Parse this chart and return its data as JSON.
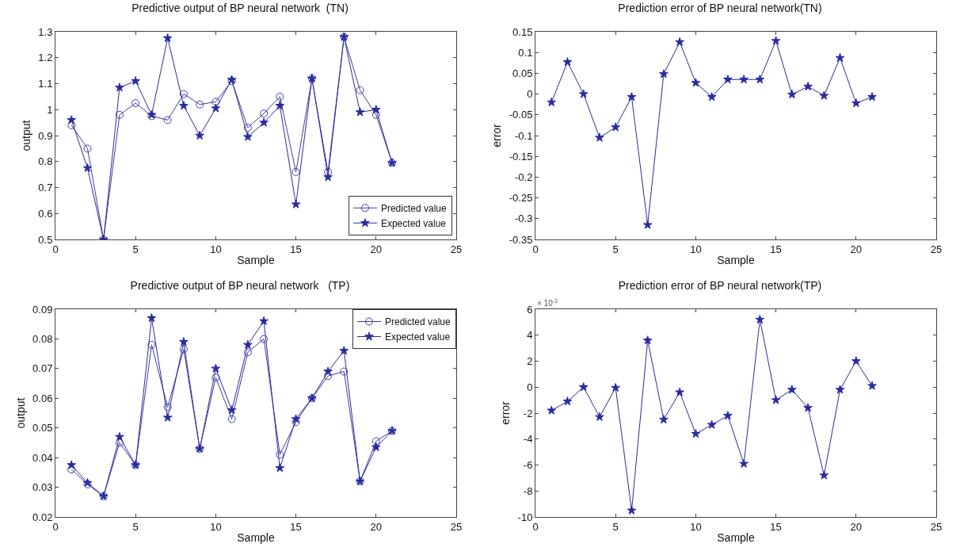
{
  "chart_data": [
    {
      "type": "line",
      "title": "Predictive output of BP neural network  (TN)",
      "xlabel": "Sample",
      "ylabel": "output",
      "x": [
        1,
        2,
        3,
        4,
        5,
        6,
        7,
        8,
        9,
        10,
        11,
        12,
        13,
        14,
        15,
        16,
        17,
        18,
        19,
        20,
        21
      ],
      "xlim": [
        0,
        25
      ],
      "xticks": [
        0,
        5,
        10,
        15,
        20,
        25
      ],
      "ylim": [
        0.5,
        1.3
      ],
      "yticks": [
        0.5,
        0.6,
        0.7,
        0.8,
        0.9,
        1,
        1.1,
        1.2,
        1.3
      ],
      "grid": false,
      "legend": "bottom right",
      "line_style": "solid",
      "series": [
        {
          "name": "Predicted value",
          "color": "#3c3ca8",
          "marker": "circle",
          "values": [
            0.94,
            0.85,
            0.5,
            0.98,
            1.025,
            0.975,
            0.96,
            1.06,
            1.02,
            1.03,
            1.11,
            0.93,
            0.985,
            1.05,
            0.76,
            1.12,
            0.76,
            1.28,
            1.075,
            0.98,
            0.795
          ]
        },
        {
          "name": "Expected value",
          "color": "#2a2aa0",
          "marker": "star",
          "values": [
            0.96,
            0.775,
            0.5,
            1.085,
            1.11,
            0.98,
            1.275,
            1.015,
            0.9,
            1.005,
            1.115,
            0.895,
            0.95,
            1.015,
            0.635,
            1.12,
            0.74,
            1.28,
            0.99,
            1.0,
            0.795
          ]
        }
      ]
    },
    {
      "type": "line",
      "title": "Prediction error of BP neural network(TN)",
      "xlabel": "Sample",
      "ylabel": "error",
      "x": [
        1,
        2,
        3,
        4,
        5,
        6,
        7,
        8,
        9,
        10,
        11,
        12,
        13,
        14,
        15,
        16,
        17,
        18,
        19,
        20,
        21
      ],
      "xlim": [
        0,
        25
      ],
      "xticks": [
        0,
        5,
        10,
        15,
        20,
        25
      ],
      "ylim": [
        -0.35,
        0.15
      ],
      "yticks": [
        -0.35,
        -0.3,
        -0.25,
        -0.2,
        -0.15,
        -0.1,
        -0.05,
        0,
        0.05,
        0.1,
        0.15
      ],
      "grid": false,
      "legend": false,
      "line_style": "solid",
      "marker": "star",
      "series": [
        {
          "color": "#2a2aa0",
          "values": [
            -0.02,
            0.077,
            0.0,
            -0.105,
            -0.08,
            -0.007,
            -0.315,
            0.048,
            0.125,
            0.027,
            -0.007,
            0.035,
            0.035,
            0.035,
            0.128,
            -0.001,
            0.018,
            -0.004,
            0.087,
            -0.022,
            -0.007
          ]
        }
      ]
    },
    {
      "type": "line",
      "title": "Predictive output of BP neural network   (TP)",
      "xlabel": "Sample",
      "ylabel": "output",
      "x": [
        1,
        2,
        3,
        4,
        5,
        6,
        7,
        8,
        9,
        10,
        11,
        12,
        13,
        14,
        15,
        16,
        17,
        18,
        19,
        20,
        21
      ],
      "xlim": [
        0,
        25
      ],
      "xticks": [
        0,
        5,
        10,
        15,
        20,
        25
      ],
      "ylim": [
        0.02,
        0.09
      ],
      "yticks": [
        0.02,
        0.03,
        0.04,
        0.05,
        0.06,
        0.07,
        0.08,
        0.09
      ],
      "grid": false,
      "legend": "top right",
      "line_style": "solid",
      "series": [
        {
          "name": "Predicted value",
          "color": "#3c3ca8",
          "marker": "circle",
          "values": [
            0.036,
            0.031,
            0.027,
            0.045,
            0.0375,
            0.078,
            0.057,
            0.0765,
            0.043,
            0.067,
            0.053,
            0.0755,
            0.08,
            0.041,
            0.052,
            0.06,
            0.0675,
            0.069,
            0.032,
            0.0455,
            0.049
          ]
        },
        {
          "name": "Expected value",
          "color": "#2a2aa0",
          "marker": "star",
          "values": [
            0.0375,
            0.0315,
            0.027,
            0.047,
            0.0375,
            0.087,
            0.0535,
            0.079,
            0.043,
            0.07,
            0.056,
            0.078,
            0.086,
            0.0365,
            0.053,
            0.06,
            0.069,
            0.076,
            0.032,
            0.0435,
            0.049
          ]
        }
      ]
    },
    {
      "type": "line",
      "title": "Prediction error of BP neural network(TP)",
      "xlabel": "Sample",
      "ylabel": "error",
      "annotations": [
        "× 10$^{-3}$"
      ],
      "x": [
        1,
        2,
        3,
        4,
        5,
        6,
        7,
        8,
        9,
        10,
        11,
        12,
        13,
        14,
        15,
        16,
        17,
        18,
        19,
        20,
        21
      ],
      "xlim": [
        0,
        25
      ],
      "xticks": [
        0,
        5,
        10,
        15,
        20,
        25
      ],
      "ylim": [
        -10,
        6
      ],
      "yticks": [
        -10,
        -8,
        -6,
        -4,
        -2,
        0,
        2,
        4,
        6
      ],
      "grid": false,
      "legend": false,
      "line_style": "solid",
      "marker": "star",
      "series": [
        {
          "color": "#2a2aa0",
          "values": [
            -1.8,
            -1.1,
            0,
            -2.3,
            -0.05,
            -9.5,
            3.6,
            -2.5,
            -0.4,
            -3.6,
            -2.9,
            -2.2,
            -5.9,
            5.2,
            -1.0,
            -0.2,
            -1.6,
            -6.8,
            -0.2,
            2.0,
            0.1
          ]
        }
      ]
    }
  ]
}
